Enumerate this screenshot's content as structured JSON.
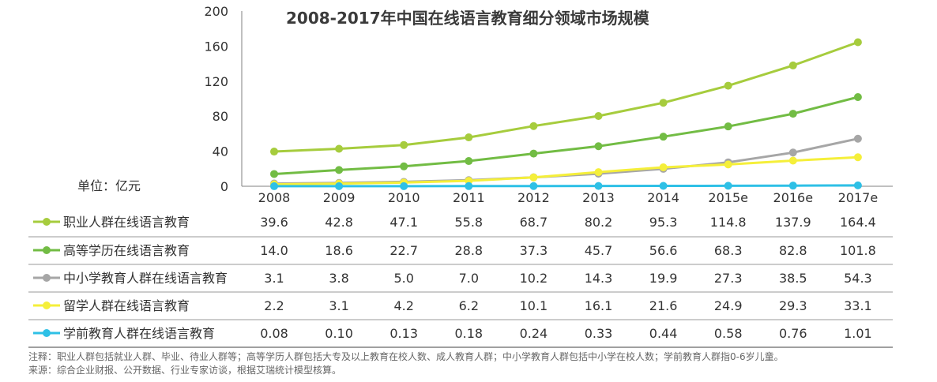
{
  "chart_data": {
    "type": "line",
    "title": "2008-2017年中国在线语言教育细分领域市场规模",
    "unit_label": "单位：亿元",
    "categories": [
      "2008",
      "2009",
      "2010",
      "2011",
      "2012",
      "2013",
      "2014",
      "2015e",
      "2016e",
      "2017e"
    ],
    "ylim": [
      0,
      200
    ],
    "yticks": [
      "0",
      "40",
      "80",
      "120",
      "160",
      "200"
    ],
    "series": [
      {
        "name": "职业人群在线语言教育",
        "color": "#a6cc3d",
        "values": [
          39.6,
          42.8,
          47.1,
          55.8,
          68.7,
          80.2,
          95.3,
          114.8,
          137.9,
          164.4
        ],
        "labels": [
          "39.6",
          "42.8",
          "47.1",
          "55.8",
          "68.7",
          "80.2",
          "95.3",
          "114.8",
          "137.9",
          "164.4"
        ]
      },
      {
        "name": "高等学历在线语言教育",
        "color": "#72bc44",
        "values": [
          14.0,
          18.6,
          22.7,
          28.8,
          37.3,
          45.7,
          56.6,
          68.3,
          82.8,
          101.8
        ],
        "labels": [
          "14.0",
          "18.6",
          "22.7",
          "28.8",
          "37.3",
          "45.7",
          "56.6",
          "68.3",
          "82.8",
          "101.8"
        ]
      },
      {
        "name": "中小学教育人群在线语言教育",
        "color": "#a6a6a6",
        "values": [
          3.1,
          3.8,
          5.0,
          7.0,
          10.2,
          14.3,
          19.9,
          27.3,
          38.5,
          54.3
        ],
        "labels": [
          "3.1",
          "3.8",
          "5.0",
          "7.0",
          "10.2",
          "14.3",
          "19.9",
          "27.3",
          "38.5",
          "54.3"
        ]
      },
      {
        "name": "留学人群在线语言教育",
        "color": "#f5ef3a",
        "values": [
          2.2,
          3.1,
          4.2,
          6.2,
          10.1,
          16.1,
          21.6,
          24.9,
          29.3,
          33.1
        ],
        "labels": [
          "2.2",
          "3.1",
          "4.2",
          "6.2",
          "10.1",
          "16.1",
          "21.6",
          "24.9",
          "29.3",
          "33.1"
        ]
      },
      {
        "name": "学前教育人群在线语言教育",
        "color": "#2ec0e6",
        "values": [
          0.08,
          0.1,
          0.13,
          0.18,
          0.24,
          0.33,
          0.44,
          0.58,
          0.76,
          1.01
        ],
        "labels": [
          "0.08",
          "0.10",
          "0.13",
          "0.18",
          "0.24",
          "0.33",
          "0.44",
          "0.58",
          "0.76",
          "1.01"
        ]
      }
    ]
  },
  "notes": {
    "note": "注释：职业人群包括就业人群、毕业、待业人群等；高等学历人群包括大专及以上教育在校人数、成人教育人群；中小学教育人群包括中小学在校人数；学前教育人群指0-6岁儿童。",
    "source": "来源：综合企业财报、公开数据、行业专家访谈，根据艾瑞统计模型核算。"
  }
}
